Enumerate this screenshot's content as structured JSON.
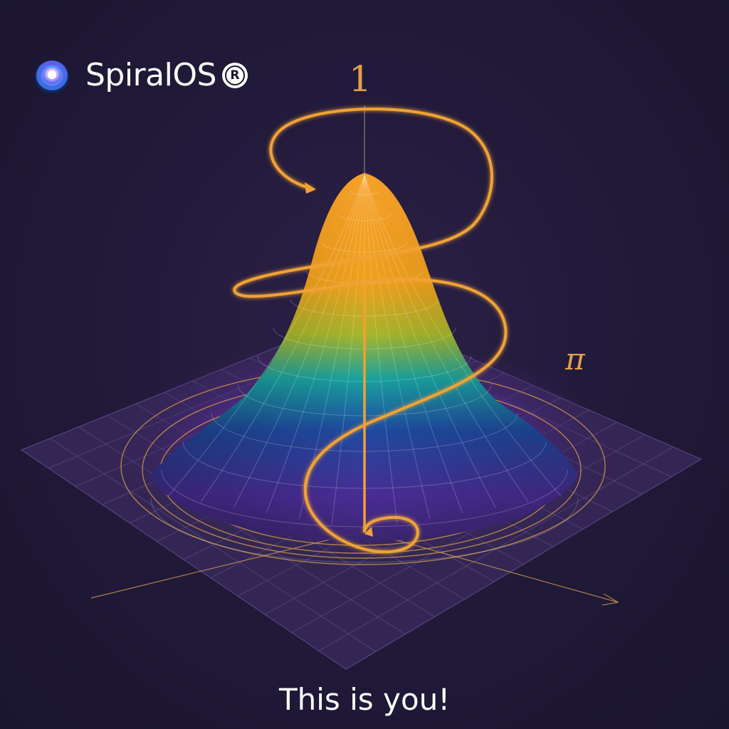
{
  "brand": {
    "name": "SpiralOS",
    "registered_mark": "R"
  },
  "labels": {
    "top_axis": "1",
    "side_axis": "π"
  },
  "caption": "This is you!",
  "colors": {
    "background": "#221a3a",
    "spiral": "#f0a234",
    "surface_top": "#f7a12a",
    "surface_mid": "#19a2a0",
    "surface_base": "#5a2c9a",
    "grid": "#d9a049",
    "text": "#ffffff"
  },
  "icons": {
    "logo": "spiral-logo-icon",
    "registered": "registered-mark-icon"
  }
}
